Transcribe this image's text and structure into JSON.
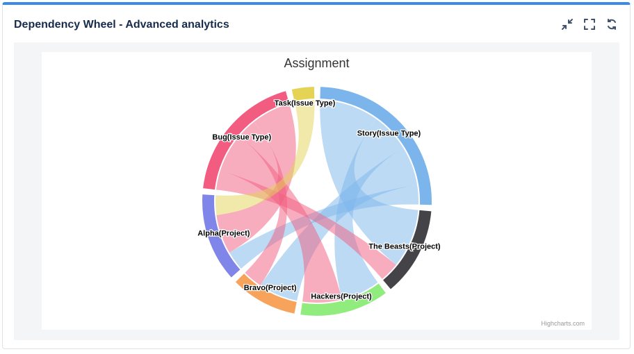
{
  "widget": {
    "title": "Dependency Wheel - Advanced analytics",
    "tools": [
      {
        "icon": "minimize-icon"
      },
      {
        "icon": "fullscreen-icon"
      },
      {
        "icon": "refresh-icon"
      }
    ]
  },
  "chart_data": {
    "type": "dependency-wheel",
    "title": "Assignment",
    "credits": "Highcharts.com",
    "nodes": [
      {
        "name": "Story(Issue Type)",
        "color": "#7cb5ec"
      },
      {
        "name": "The Beasts(Project)",
        "color": "#434348"
      },
      {
        "name": "Hackers(Project)",
        "color": "#90ed7d"
      },
      {
        "name": "Bravo(Project)",
        "color": "#f7a35c"
      },
      {
        "name": "Alpha(Project)",
        "color": "#8085e9"
      },
      {
        "name": "Bug(Issue Type)",
        "color": "#f15c80"
      },
      {
        "name": "Task(Issue Type)",
        "color": "#e4d354"
      }
    ],
    "links": [
      {
        "from": "Story(Issue Type)",
        "to": "The Beasts(Project)",
        "weight": 3
      },
      {
        "from": "Story(Issue Type)",
        "to": "Hackers(Project)",
        "weight": 2
      },
      {
        "from": "Story(Issue Type)",
        "to": "Bravo(Project)",
        "weight": 2
      },
      {
        "from": "Story(Issue Type)",
        "to": "Alpha(Project)",
        "weight": 1
      },
      {
        "from": "Bug(Issue Type)",
        "to": "The Beasts(Project)",
        "weight": 1
      },
      {
        "from": "Bug(Issue Type)",
        "to": "Hackers(Project)",
        "weight": 2
      },
      {
        "from": "Bug(Issue Type)",
        "to": "Bravo(Project)",
        "weight": 1
      },
      {
        "from": "Bug(Issue Type)",
        "to": "Alpha(Project)",
        "weight": 2
      },
      {
        "from": "Task(Issue Type)",
        "to": "Alpha(Project)",
        "weight": 1
      }
    ]
  }
}
